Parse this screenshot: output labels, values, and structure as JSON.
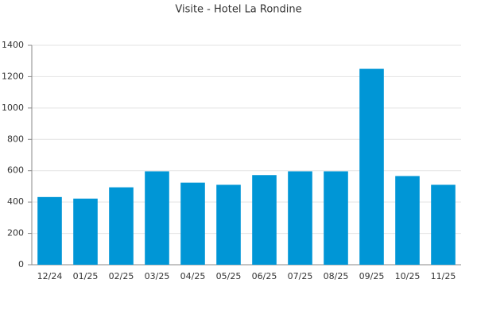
{
  "chart_data": {
    "type": "bar",
    "title": "Visite - Hotel La Rondine",
    "categories": [
      "12/24",
      "01/25",
      "02/25",
      "03/25",
      "04/25",
      "05/25",
      "06/25",
      "07/25",
      "08/25",
      "09/25",
      "10/25",
      "11/25"
    ],
    "values": [
      432,
      422,
      494,
      596,
      524,
      510,
      572,
      596,
      596,
      1250,
      566,
      510
    ],
    "color": "#0096d6",
    "ylim": [
      0,
      1400
    ],
    "yticks": [
      0,
      200,
      400,
      600,
      800,
      1000,
      1200,
      1400
    ],
    "grid": true
  }
}
